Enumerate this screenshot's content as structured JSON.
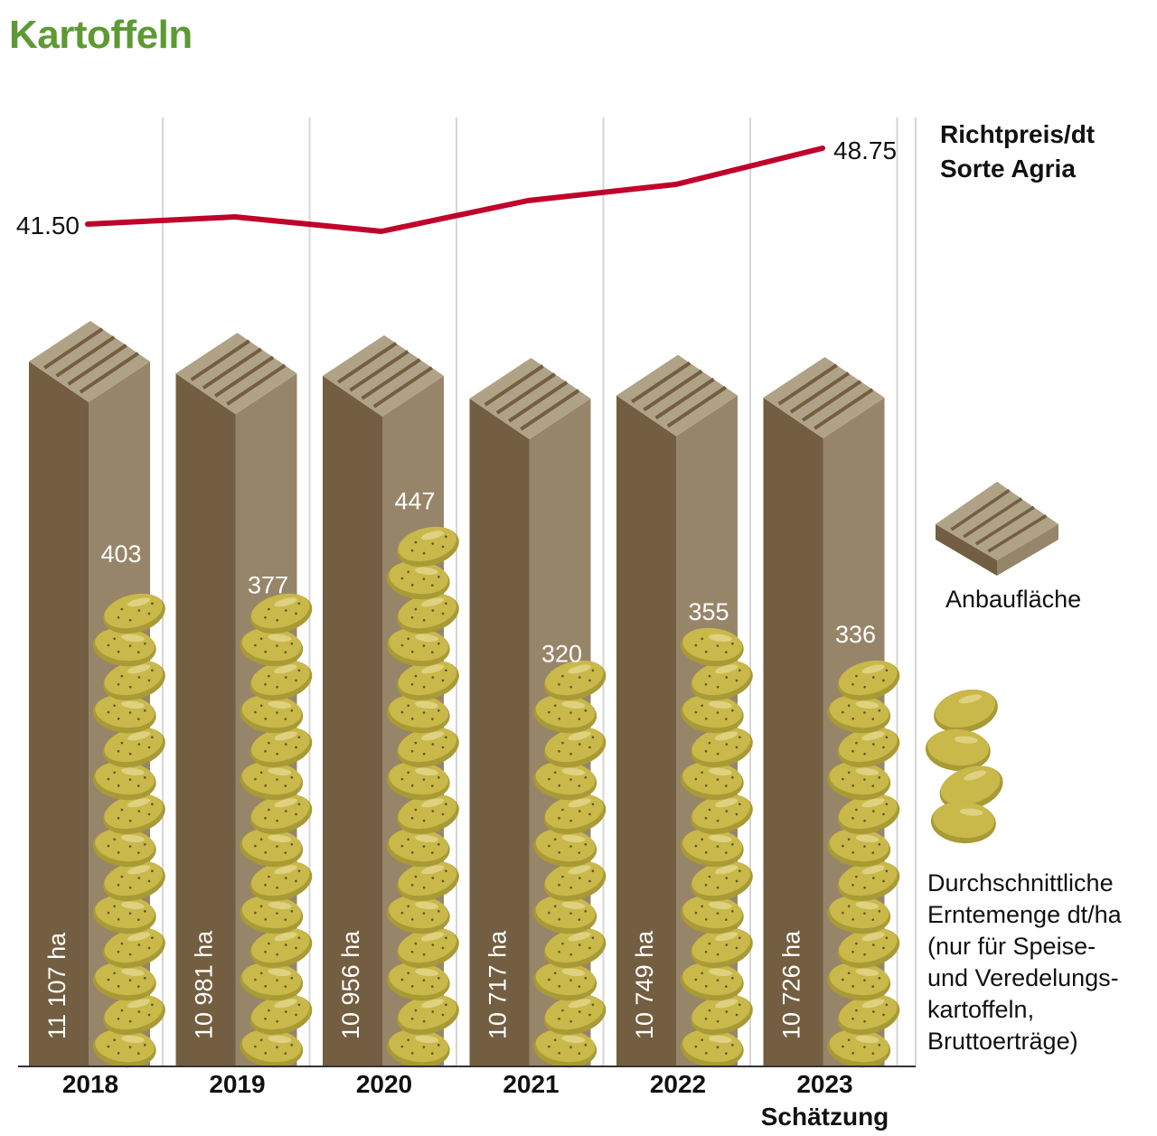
{
  "title": "Kartoffeln",
  "colors": {
    "title": "#5e9a34",
    "price_line": "#c0002a",
    "pillar_left": "#735e41",
    "pillar_right": "#978569",
    "pillar_top": "#b0a286",
    "pillar_groove": "#735e41",
    "potato": "#c9b84a",
    "potato_shadow": "#a89a35",
    "potato_highlight": "#e3d78c",
    "gridline": "#d6d6d6",
    "axis": "#333333"
  },
  "legend": {
    "price_line1": "Richtpreis/dt",
    "price_line2": "Sorte Agria",
    "area": "Anbaufläche",
    "yield_lines": [
      "Durchschnittliche",
      "Erntemenge dt/ha",
      "(nur für Speise-",
      "und Veredelungs-",
      "kartoffeln,",
      "Bruttoerträge)"
    ]
  },
  "price_labels": {
    "first": "41.50",
    "last": "48.75"
  },
  "years": [
    {
      "year": "2018",
      "sub": "",
      "area": "11 107 ha",
      "yield": "403"
    },
    {
      "year": "2019",
      "sub": "",
      "area": "10 981 ha",
      "yield": "377"
    },
    {
      "year": "2020",
      "sub": "",
      "area": "10 956 ha",
      "yield": "447"
    },
    {
      "year": "2021",
      "sub": "",
      "area": "10 717 ha",
      "yield": "320"
    },
    {
      "year": "2022",
      "sub": "",
      "area": "10 749 ha",
      "yield": "355"
    },
    {
      "year": "2023",
      "sub": "Schätzung",
      "area": "10 726 ha",
      "yield": "336"
    }
  ],
  "chart_data": {
    "type": "bar",
    "title": "Kartoffeln",
    "categories": [
      "2018",
      "2019",
      "2020",
      "2021",
      "2022",
      "2023 Schätzung"
    ],
    "series": [
      {
        "name": "Anbaufläche (ha)",
        "type": "bar",
        "values": [
          11107,
          10981,
          10956,
          10717,
          10749,
          10726
        ]
      },
      {
        "name": "Durchschnittliche Erntemenge dt/ha (nur für Speise- und Veredelungskartoffeln, Bruttoerträge)",
        "type": "pictogram-bar",
        "values": [
          403,
          377,
          447,
          320,
          355,
          336
        ]
      },
      {
        "name": "Richtpreis/dt Sorte Agria",
        "type": "line",
        "values": [
          41.5,
          42.0,
          41.0,
          43.8,
          45.0,
          48.75
        ],
        "labeled_points": {
          "2018": 41.5,
          "2023": 48.75
        }
      }
    ],
    "xlabel": "",
    "ylabel": "",
    "grid": "vertical separators between years",
    "legend_position": "right"
  }
}
